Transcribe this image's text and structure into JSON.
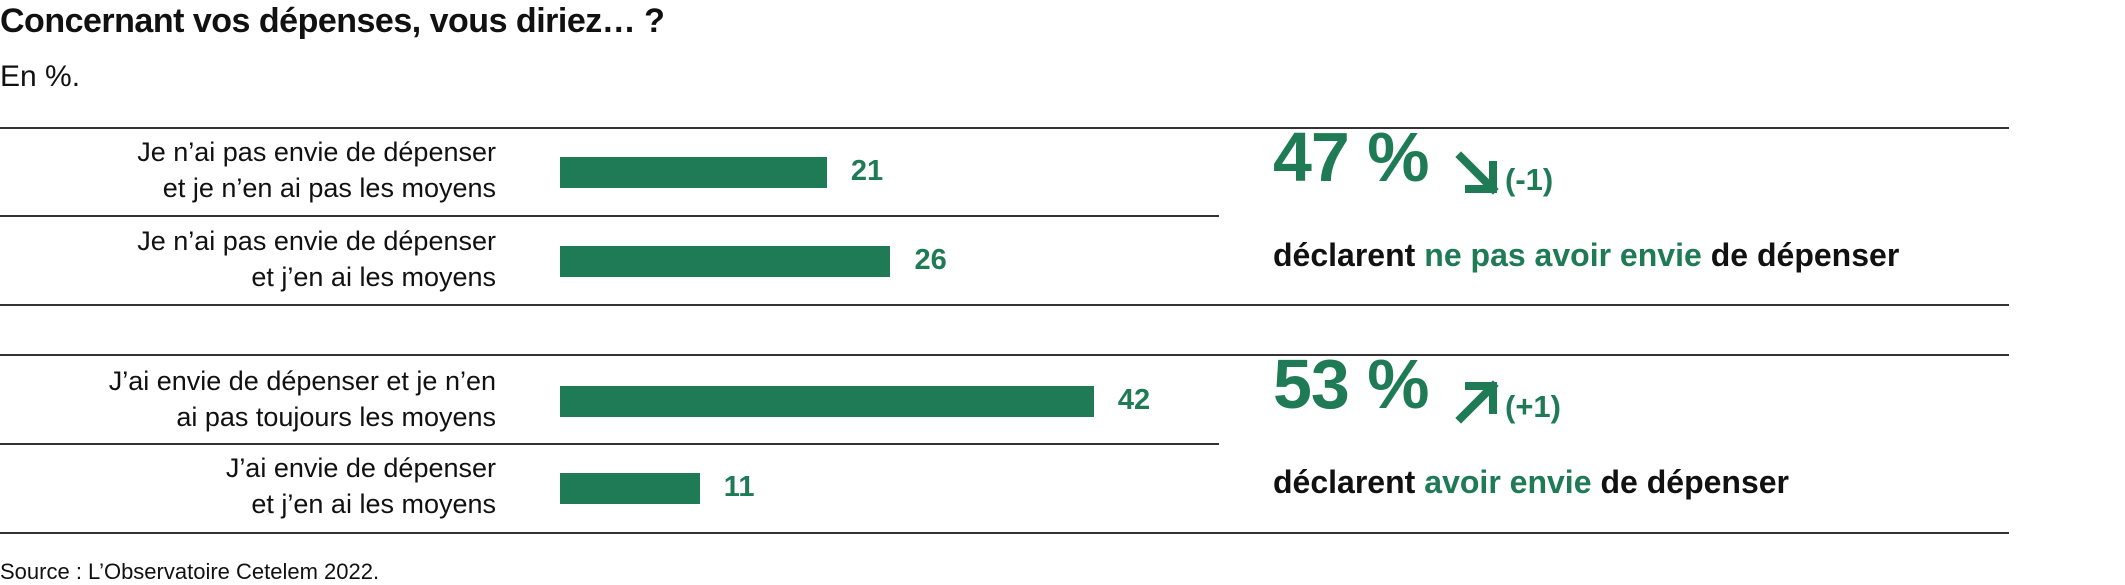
{
  "chart_data": {
    "type": "bar",
    "orientation": "horizontal",
    "title": "Concernant vos dépenses, vous diriez… ?",
    "subtitle": "En %.",
    "categories": [
      [
        "Je n’ai pas envie de dépenser",
        "et je n’en ai pas les moyens"
      ],
      [
        "Je n’ai pas envie de dépenser",
        "et j’en ai les moyens"
      ],
      [
        "J’ai envie de dépenser et je n’en",
        "ai pas toujours les moyens"
      ],
      [
        "J’ai envie de dépenser",
        "et j’en ai les moyens"
      ]
    ],
    "values": [
      21,
      26,
      42,
      11
    ],
    "color": "#1e7b55",
    "callouts": [
      {
        "value": 47,
        "label": "47 %",
        "change": -1,
        "change_label": "(-1)",
        "text": [
          "déclarent",
          "ne pas avoir envie",
          "de dépenser"
        ]
      },
      {
        "value": 53,
        "label": "53 %",
        "change": 1,
        "change_label": "(+1)",
        "text": [
          "déclarent",
          "avoir envie",
          "de dépenser"
        ]
      }
    ],
    "source": "Source : L’Observatoire Cetelem 2022."
  }
}
